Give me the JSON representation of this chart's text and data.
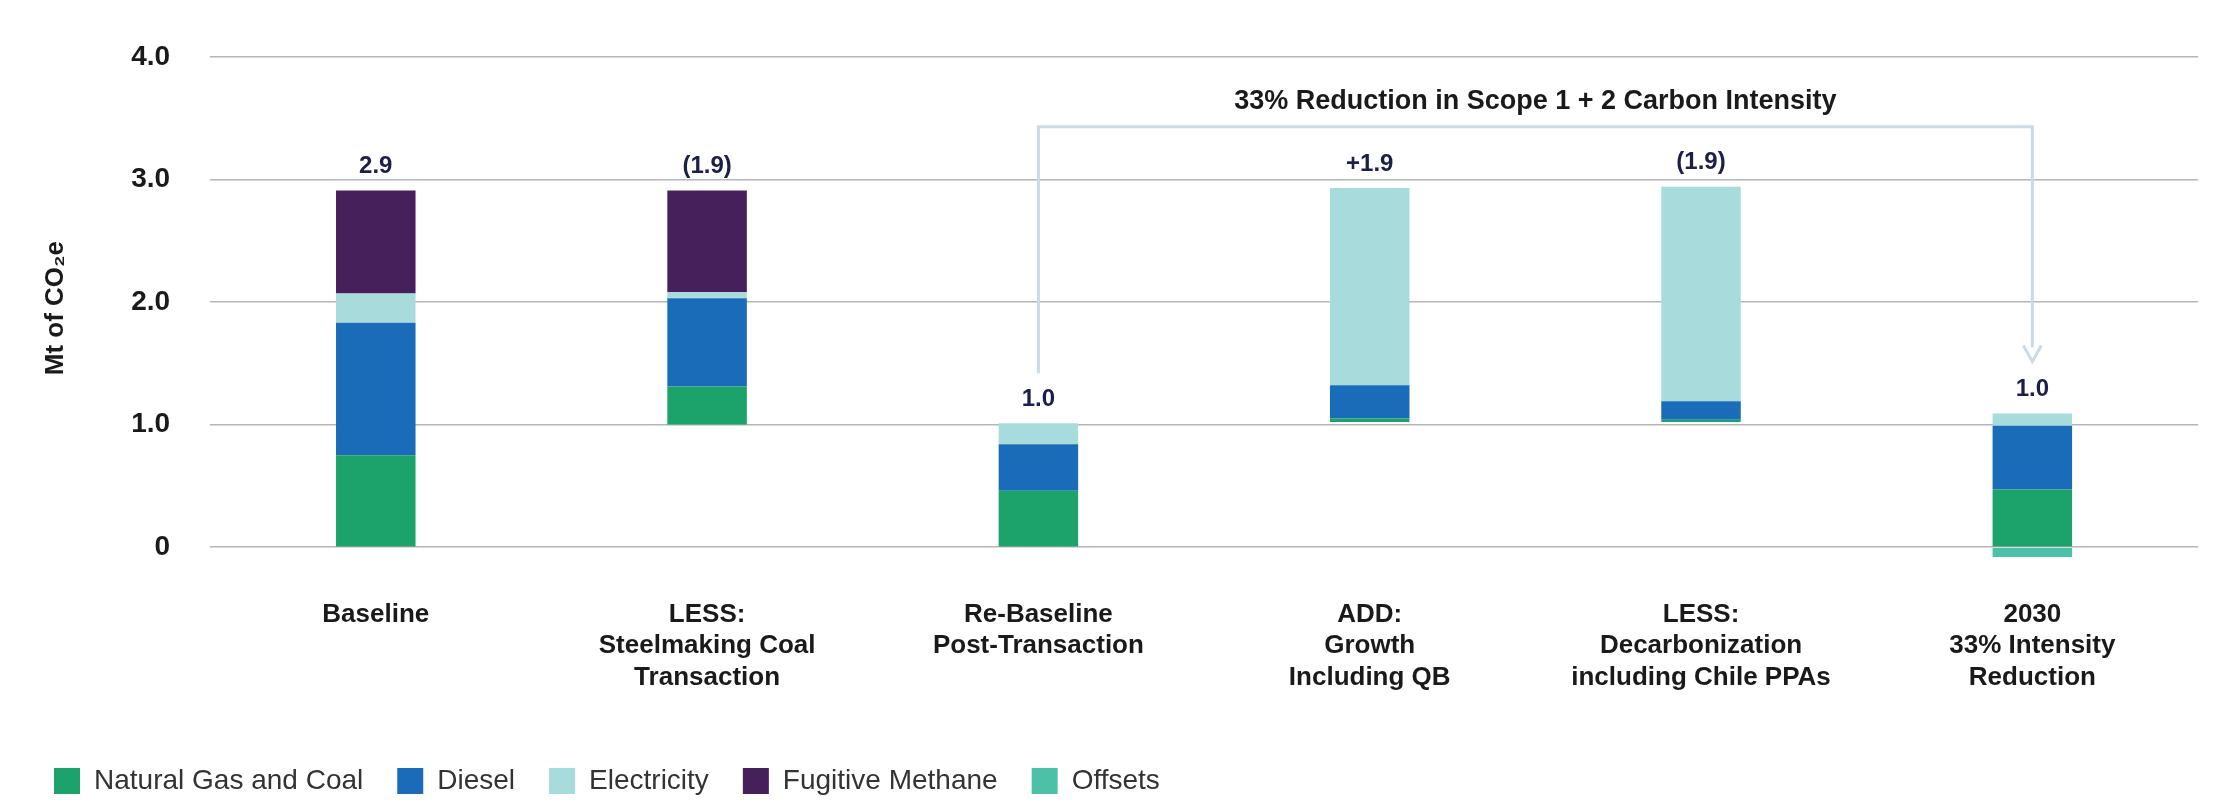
{
  "chart_data": {
    "type": "bar",
    "ylabel": "Mt of CO₂e",
    "categories": [
      "Baseline",
      "LESS:\nSteelmaking Coal\nTransaction",
      "Re-Baseline\nPost-Transaction",
      "ADD:\nGrowth\nIncluding QB",
      "LESS:\nDecarbonization\nincluding Chile PPAs",
      "2030\n33% Intensity\nReduction"
    ],
    "series": [
      {
        "name": "Natural Gas and Coal",
        "color": "#1ba36b",
        "base": [
          0,
          1.0,
          0,
          1.02,
          1.02,
          0
        ],
        "values": [
          0.75,
          0.31,
          0.46,
          0.03,
          0.02,
          0.47
        ]
      },
      {
        "name": "Diesel",
        "color": "#1a6bb8",
        "base": [
          0.75,
          1.31,
          0.46,
          1.05,
          1.04,
          0.47
        ],
        "values": [
          1.08,
          0.72,
          0.38,
          0.27,
          0.15,
          0.52
        ]
      },
      {
        "name": "Electricity",
        "color": "#a8dcdc",
        "base": [
          1.83,
          2.03,
          0.84,
          1.32,
          1.19,
          0.99
        ],
        "values": [
          0.24,
          0.05,
          0.17,
          1.61,
          1.75,
          0.1
        ]
      },
      {
        "name": "Fugitive Methane",
        "color": "#46205a",
        "base": [
          2.07,
          2.08,
          null,
          null,
          null,
          null
        ],
        "values": [
          0.84,
          0.83,
          null,
          null,
          null,
          null
        ]
      },
      {
        "name": "Offsets",
        "color": "#4cc1a8",
        "base": [
          null,
          null,
          null,
          null,
          null,
          0
        ],
        "values": [
          null,
          null,
          null,
          null,
          null,
          -0.08
        ]
      }
    ],
    "annotations": [
      "33% Reduction in Scope 1 + 2 Carbon Intensity",
      {
        "text": "2.9",
        "x": "Baseline",
        "y": 2.91
      },
      {
        "text": "(1.9)",
        "x": "LESS:\nSteelmaking Coal\nTransaction",
        "y": 2.91
      },
      {
        "text": "1.0",
        "x": "Re-Baseline\nPost-Transaction",
        "y": 1.01
      },
      {
        "text": "+1.9",
        "x": "ADD:\nGrowth\nIncluding QB",
        "y": 2.93
      },
      {
        "text": "(1.9)",
        "x": "LESS:\nDecarbonization\nincluding Chile PPAs",
        "y": 2.94
      },
      {
        "text": "1.0",
        "x": "2030\n33% Intensity\nReduction",
        "y": 1.09
      }
    ],
    "ylim": [
      -0.1,
      4.0
    ],
    "yticks": [
      {
        "value": 0,
        "label": "0"
      },
      {
        "value": 1,
        "label": "1.0"
      },
      {
        "value": 2,
        "label": "2.0"
      },
      {
        "value": 3,
        "label": "3.0"
      },
      {
        "value": 4,
        "label": "4.0"
      }
    ],
    "grid": "y",
    "legend": "bottom left"
  }
}
